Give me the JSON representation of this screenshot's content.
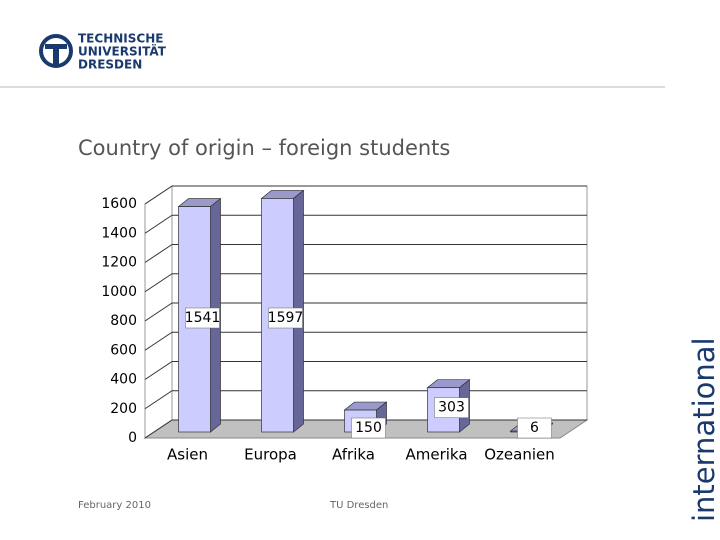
{
  "logo": {
    "lines": [
      "TECHNISCHE",
      "UNIVERSITÄT",
      "DRESDEN"
    ]
  },
  "side_label": "international",
  "footer": {
    "date": "February 2010",
    "org": "TU Dresden"
  },
  "chart_data": {
    "type": "bar",
    "title": "Country of origin – foreign students",
    "categories": [
      "Asien",
      "Europa",
      "Afrika",
      "Amerika",
      "Ozeanien"
    ],
    "values": [
      1541,
      1597,
      150,
      303,
      6
    ],
    "color": "#ccccff",
    "ylim": [
      0,
      1600
    ],
    "yticks": [
      0,
      200,
      400,
      600,
      800,
      1000,
      1200,
      1400,
      1600
    ],
    "grid": true
  }
}
